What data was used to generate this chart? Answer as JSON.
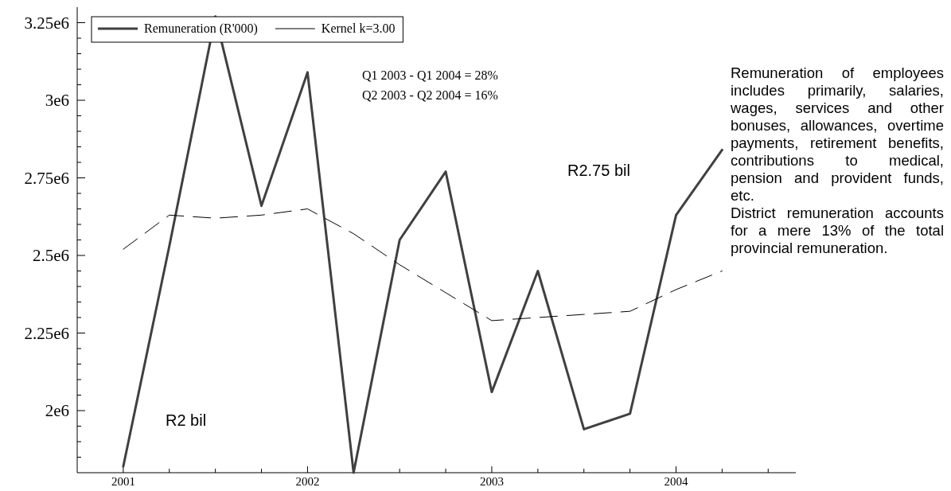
{
  "chart_data": {
    "type": "line",
    "x": [
      2001,
      2001.25,
      2001.5,
      2001.75,
      2002,
      2002.25,
      2002.5,
      2002.75,
      2003,
      2003.25,
      2003.5,
      2003.75,
      2004,
      2004.25
    ],
    "series": [
      {
        "name": "Remuneration (R'000)",
        "color": "#404040",
        "line_style": "solid",
        "values": [
          1820000,
          2530000,
          3270000,
          2660000,
          3090000,
          1800000,
          2550000,
          2770000,
          2060000,
          2450000,
          1940000,
          1990000,
          2630000,
          2840000
        ]
      },
      {
        "name": "Kernel k=3.00",
        "color": "#000000",
        "line_style": "dashed",
        "values": [
          2520000,
          2630000,
          2620000,
          2630000,
          2650000,
          2570000,
          2470000,
          2380000,
          2290000,
          2300000,
          2310000,
          2320000,
          2390000,
          2450000
        ]
      }
    ],
    "xlim": [
      2000.75,
      2004.65
    ],
    "xticks": [
      2001,
      {
        "value": 2001.25,
        "label": null
      },
      {
        "value": 2001.5,
        "label": null
      },
      {
        "value": 2001.75,
        "label": null
      },
      2002,
      {
        "value": 2002.25,
        "label": null
      },
      {
        "value": 2002.5,
        "label": null
      },
      {
        "value": 2002.75,
        "label": null
      },
      2003,
      {
        "value": 2003.25,
        "label": null
      },
      {
        "value": 2003.5,
        "label": null
      },
      {
        "value": 2003.75,
        "label": null
      },
      2004,
      {
        "value": 2004.25,
        "label": null
      },
      {
        "value": 2004.5,
        "label": null
      }
    ],
    "ylim": [
      1800000,
      3300000
    ],
    "yticks": [
      {
        "value": 1850000,
        "label": null
      },
      {
        "value": 1900000,
        "label": null
      },
      {
        "value": 1950000,
        "label": null
      },
      {
        "value": 2000000,
        "label": "2e6"
      },
      {
        "value": 2050000,
        "label": null
      },
      {
        "value": 2100000,
        "label": null
      },
      {
        "value": 2150000,
        "label": null
      },
      {
        "value": 2200000,
        "label": null
      },
      {
        "value": 2250000,
        "label": "2.25e6"
      },
      {
        "value": 2300000,
        "label": null
      },
      {
        "value": 2350000,
        "label": null
      },
      {
        "value": 2400000,
        "label": null
      },
      {
        "value": 2450000,
        "label": null
      },
      {
        "value": 2500000,
        "label": "2.5e6"
      },
      {
        "value": 2550000,
        "label": null
      },
      {
        "value": 2600000,
        "label": null
      },
      {
        "value": 2650000,
        "label": null
      },
      {
        "value": 2700000,
        "label": null
      },
      {
        "value": 2750000,
        "label": "2.75e6"
      },
      {
        "value": 2800000,
        "label": null
      },
      {
        "value": 2850000,
        "label": null
      },
      {
        "value": 2900000,
        "label": null
      },
      {
        "value": 2950000,
        "label": null
      },
      {
        "value": 3000000,
        "label": "3e6"
      },
      {
        "value": 3050000,
        "label": null
      },
      {
        "value": 3100000,
        "label": null
      },
      {
        "value": 3150000,
        "label": null
      },
      {
        "value": 3200000,
        "label": null
      },
      {
        "value": 3250000,
        "label": "3.25e6"
      }
    ],
    "grid": false,
    "legend": "top left",
    "marker": "none",
    "annotations": [
      "Q1 2003 - Q1 2004 = 28%",
      "Q2 2003 - Q2 2004 = 16%",
      "R2 bil",
      "R2.75 bil",
      "Remuneration of employees includes primarily, salaries, wages, services and other bonuses, allowances, overtime payments, retirement benefits, contributions to medical, pension and provident funds, etc.",
      "District remuneration accounts for a mere 13% of the total provincial remuneration."
    ]
  }
}
